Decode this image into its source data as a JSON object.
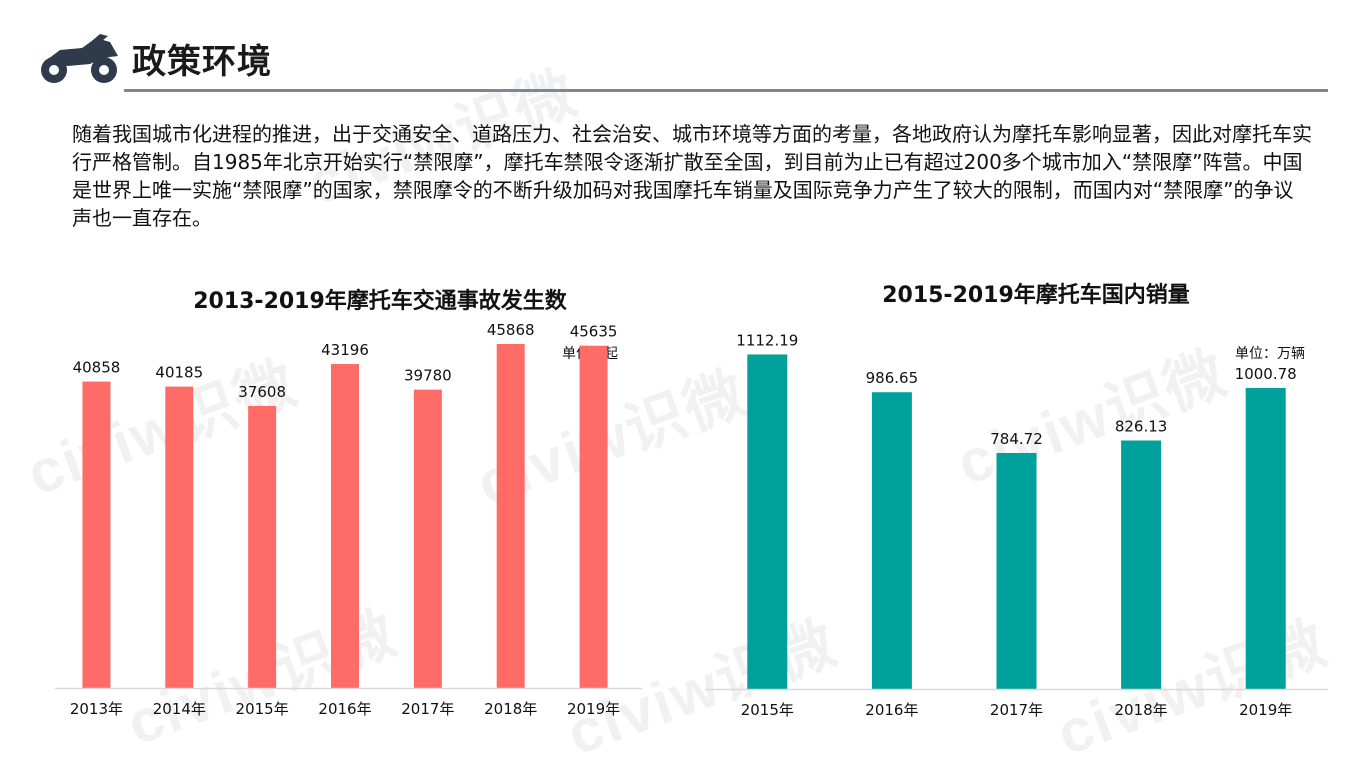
{
  "header": {
    "title": "政策环境",
    "icon": "motorcycle-icon",
    "icon_color": "#2f3a4b",
    "rule_color": "#7f8591"
  },
  "watermark": "civiw识微",
  "paragraph": "随着我国城市化进程的推进，出于交通安全、道路压力、社会治安、城市环境等方面的考量，各地政府认为摩托车影响显著，因此对摩托车实行严格管制。自1985年北京开始实行“禁限摩”，摩托车禁限令逐渐扩散至全国，到目前为止已有超过200多个城市加入“禁限摩”阵营。中国是世界上唯一实施“禁限摩”的国家，禁限摩令的不断升级加码对我国摩托车销量及国际竞争力产生了较大的限制，而国内对“禁限摩”的争议声也一直存在。",
  "chart_data": [
    {
      "type": "bar",
      "title": "2013-2019年摩托车交通事故发生数",
      "unit": "单位：起",
      "categories": [
        "2013年",
        "2014年",
        "2015年",
        "2016年",
        "2017年",
        "2018年",
        "2019年"
      ],
      "values": [
        40858,
        40185,
        37608,
        43196,
        39780,
        45868,
        45635
      ],
      "value_labels": [
        "40858",
        "40185",
        "37608",
        "43196",
        "39780",
        "45868",
        "45635"
      ],
      "ylim": [
        0,
        50000
      ],
      "color": "#ff6b66",
      "grid": false,
      "legend": "none"
    },
    {
      "type": "bar",
      "title": "2015-2019年摩托车国内销量",
      "unit": "单位：万辆",
      "categories": [
        "2015年",
        "2016年",
        "2017年",
        "2018年",
        "2019年"
      ],
      "values": [
        1112.19,
        986.65,
        784.72,
        826.13,
        1000.78
      ],
      "value_labels": [
        "1112.19",
        "986.65",
        "784.72",
        "826.13",
        "1000.78"
      ],
      "ylim": [
        0,
        1250
      ],
      "color": "#00a19c",
      "grid": false,
      "legend": "none"
    }
  ]
}
